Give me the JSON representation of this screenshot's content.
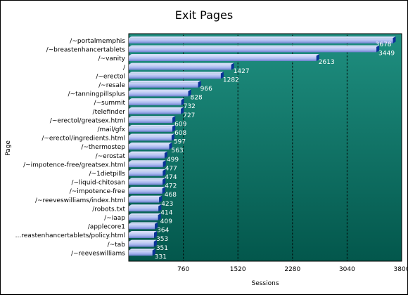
{
  "chart_data": {
    "type": "bar",
    "orientation": "horizontal",
    "title": "Exit Pages",
    "xlabel": "Sessions",
    "ylabel": "Page",
    "xlim": [
      0,
      3800
    ],
    "xticks": [
      760,
      1520,
      2280,
      3040,
      3800
    ],
    "grid": true,
    "legend": "none",
    "colors": {
      "plot_top": "#1f8f80",
      "plot_bottom": "#03574c",
      "bar_light": "#d4dcf8",
      "bar_dark": "#6e80cf",
      "bar_cap": "#0b3399",
      "gridline": "#000000"
    },
    "categories": [
      "/~portalmemphis",
      "/~breastenhancertablets",
      "/~vanity",
      "/",
      "/~erectol",
      "/~resale",
      "/~tanningpillsplus",
      "/~summit",
      "/telefinder",
      "/~erectol/greatsex.html",
      "/mail/gfx",
      "/~erectol/ingredients.html",
      "/~thermostep",
      "/~erostat",
      "/~impotence-free/greatsex.html",
      "/~1dietpills",
      "/~liquid-chitosan",
      "/~impotence-free",
      "/~reeveswilliams/index.html",
      "/robots.txt",
      "/~iaap",
      "/applecore1",
      "...reastenhancertablets/policy.html",
      "/~tab",
      "/~reeveswilliams"
    ],
    "values": [
      3678,
      3449,
      2613,
      1427,
      1282,
      966,
      828,
      732,
      727,
      609,
      608,
      597,
      563,
      499,
      477,
      474,
      472,
      468,
      423,
      414,
      409,
      364,
      353,
      351,
      331
    ]
  }
}
